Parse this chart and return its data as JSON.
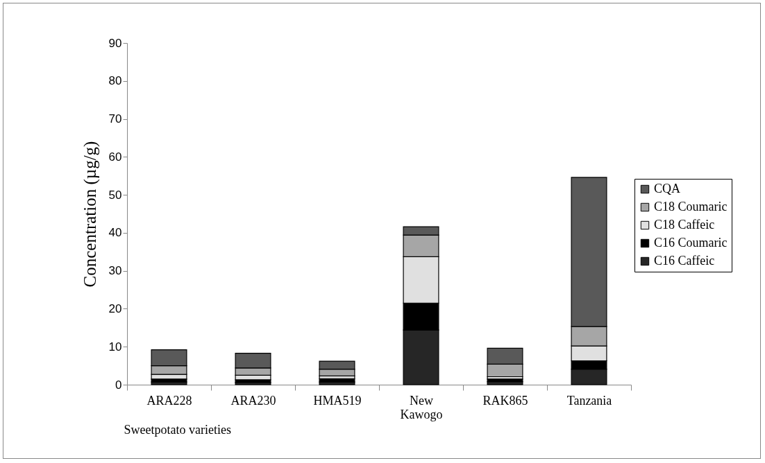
{
  "chart_data": {
    "type": "bar",
    "xlabel": "Sweetpotato varieties",
    "ylabel": "Concentration (µg/g)",
    "categories": [
      "ARA228",
      "ARA230",
      "HMA519",
      "New Kawogo",
      "RAK865",
      "Tanzania"
    ],
    "stacked": true,
    "series": [
      {
        "name": "C16 Caffeic",
        "color": "#262626",
        "values": [
          0.7,
          0.6,
          0.7,
          14.4,
          0.8,
          4.1
        ]
      },
      {
        "name": "C16 Coumaric",
        "color": "#000000",
        "values": [
          0.8,
          0.7,
          0.9,
          7.1,
          0.7,
          2.2
        ]
      },
      {
        "name": "C18 Caffeic",
        "color": "#e0e0e0",
        "values": [
          1.2,
          1.2,
          0.7,
          12.2,
          0.6,
          3.9
        ]
      },
      {
        "name": "C18 Coumaric",
        "color": "#a6a6a6",
        "values": [
          2.3,
          1.9,
          1.8,
          5.7,
          3.3,
          5.1
        ]
      },
      {
        "name": "CQA",
        "color": "#595959",
        "values": [
          4.2,
          3.9,
          2.1,
          2.2,
          4.2,
          39.3
        ]
      }
    ],
    "ylim": [
      0,
      90
    ],
    "yticks": [
      0,
      10,
      20,
      30,
      40,
      50,
      60,
      70,
      80,
      90
    ],
    "grid": false,
    "legend": "right"
  }
}
